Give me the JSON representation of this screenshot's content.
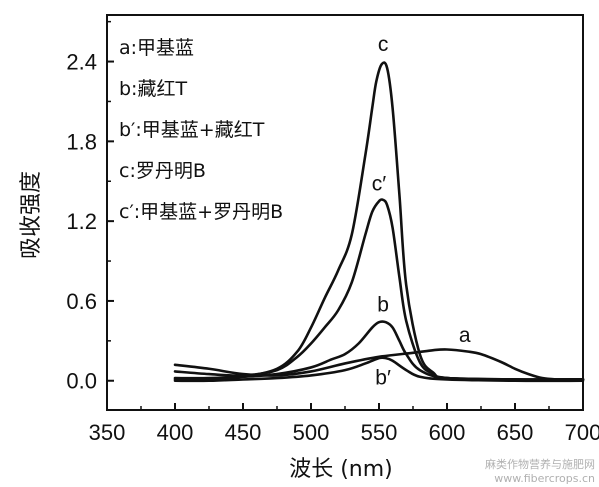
{
  "chart_data": {
    "type": "line",
    "title": "",
    "xlabel": "波长 (nm)",
    "ylabel": "吸收强度",
    "xlim": [
      350,
      700
    ],
    "ylim": [
      -0.22,
      2.75
    ],
    "x_ticks": [
      350,
      400,
      450,
      500,
      550,
      600,
      650,
      700
    ],
    "y_ticks": [
      0.0,
      0.6,
      1.2,
      1.8,
      2.4
    ],
    "y_tick_labels": [
      "0.0",
      "0.6",
      "1.2",
      "1.8",
      "2.4"
    ],
    "grid": false,
    "legend": {
      "placement": "top-left",
      "entries": [
        "a:甲基蓝",
        "b:藏红T",
        "b′:甲基蓝+藏红T",
        "c:罗丹明B",
        "c′:甲基蓝+罗丹明B"
      ]
    },
    "series": [
      {
        "name": "a",
        "label": "a",
        "x": [
          400,
          425,
          450,
          475,
          500,
          525,
          550,
          575,
          590,
          600,
          615,
          625,
          640,
          650,
          660,
          670,
          680,
          690,
          700
        ],
        "values": [
          0.12,
          0.09,
          0.05,
          0.04,
          0.07,
          0.13,
          0.18,
          0.21,
          0.23,
          0.235,
          0.22,
          0.2,
          0.14,
          0.09,
          0.05,
          0.02,
          0.01,
          0.01,
          0.01
        ]
      },
      {
        "name": "b",
        "label": "b",
        "x": [
          400,
          425,
          450,
          475,
          500,
          515,
          525,
          535,
          545,
          550,
          555,
          560,
          565,
          570,
          580,
          600,
          650,
          700
        ],
        "values": [
          0.02,
          0.02,
          0.03,
          0.05,
          0.1,
          0.16,
          0.2,
          0.28,
          0.4,
          0.44,
          0.44,
          0.4,
          0.3,
          0.2,
          0.08,
          0.02,
          0.01,
          0.01
        ]
      },
      {
        "name": "b′",
        "label": "b′",
        "x": [
          400,
          425,
          450,
          475,
          500,
          525,
          540,
          550,
          555,
          560,
          570,
          580,
          600,
          650,
          700
        ],
        "values": [
          0.0,
          0.0,
          0.01,
          0.02,
          0.04,
          0.08,
          0.13,
          0.17,
          0.17,
          0.15,
          0.08,
          0.03,
          0.01,
          0.0,
          0.0
        ]
      },
      {
        "name": "c",
        "label": "c",
        "x": [
          400,
          425,
          450,
          475,
          490,
          500,
          510,
          520,
          530,
          540,
          545,
          548,
          552,
          556,
          560,
          565,
          570,
          580,
          590,
          600,
          650,
          700
        ],
        "values": [
          0.01,
          0.01,
          0.03,
          0.09,
          0.22,
          0.4,
          0.62,
          0.83,
          1.1,
          1.7,
          2.05,
          2.25,
          2.38,
          2.35,
          2.05,
          1.4,
          0.72,
          0.2,
          0.06,
          0.02,
          0.01,
          0.01
        ]
      },
      {
        "name": "c′",
        "label": "c′",
        "x": [
          400,
          425,
          450,
          475,
          490,
          500,
          510,
          520,
          530,
          540,
          545,
          550,
          553,
          556,
          560,
          565,
          570,
          580,
          590,
          600,
          650,
          700
        ],
        "values": [
          0.07,
          0.05,
          0.04,
          0.08,
          0.18,
          0.28,
          0.4,
          0.53,
          0.74,
          1.1,
          1.27,
          1.35,
          1.36,
          1.32,
          1.15,
          0.78,
          0.45,
          0.14,
          0.05,
          0.02,
          0.01,
          0.01
        ]
      }
    ],
    "curve_labels": [
      {
        "text": "c",
        "x": 553,
        "y": 2.48
      },
      {
        "text": "c′",
        "x": 550,
        "y": 1.43
      },
      {
        "text": "b",
        "x": 553,
        "y": 0.52
      },
      {
        "text": "b′",
        "x": 553,
        "y": -0.03
      },
      {
        "text": "a",
        "x": 613,
        "y": 0.29
      }
    ]
  },
  "watermark": {
    "line1": "麻类作物营养与施肥网",
    "line2": "www.fibercrops.cn"
  }
}
